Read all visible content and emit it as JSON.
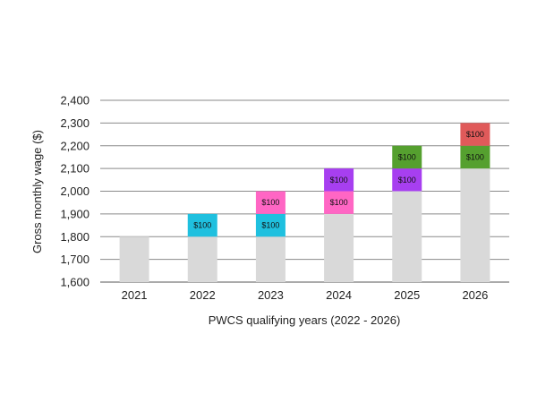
{
  "chart_data": {
    "type": "bar",
    "stacked": true,
    "title": "",
    "xlabel": "PWCS qualifying years (2022 - 2026)",
    "ylabel": "Gross monthly wage ($)",
    "ylim": [
      1600,
      2400
    ],
    "yticks": [
      1600,
      1700,
      1800,
      1900,
      2000,
      2100,
      2200,
      2300,
      2400
    ],
    "ytick_labels": [
      "1,600",
      "1,700",
      "1,800",
      "1,900",
      "2,000",
      "2,100",
      "2,200",
      "2,300",
      "2,400"
    ],
    "grid": true,
    "categories": [
      "2021",
      "2022",
      "2023",
      "2024",
      "2025",
      "2026"
    ],
    "base": {
      "color": "#d9d9d9",
      "values": [
        1800,
        1800,
        1800,
        1900,
        2000,
        2100
      ]
    },
    "increments": [
      [],
      [
        {
          "value": 100,
          "label": "$100",
          "color": "#1fc0df"
        }
      ],
      [
        {
          "value": 100,
          "label": "$100",
          "color": "#1fc0df"
        },
        {
          "value": 100,
          "label": "$100",
          "color": "#ff66c4"
        }
      ],
      [
        {
          "value": 100,
          "label": "$100",
          "color": "#ff66c4"
        },
        {
          "value": 100,
          "label": "$100",
          "color": "#a73ff0"
        }
      ],
      [
        {
          "value": 100,
          "label": "$100",
          "color": "#a73ff0"
        },
        {
          "value": 100,
          "label": "$100",
          "color": "#55a02f"
        }
      ],
      [
        {
          "value": 100,
          "label": "$100",
          "color": "#55a02f"
        },
        {
          "value": 100,
          "label": "$100",
          "color": "#e05a5a"
        }
      ]
    ]
  }
}
